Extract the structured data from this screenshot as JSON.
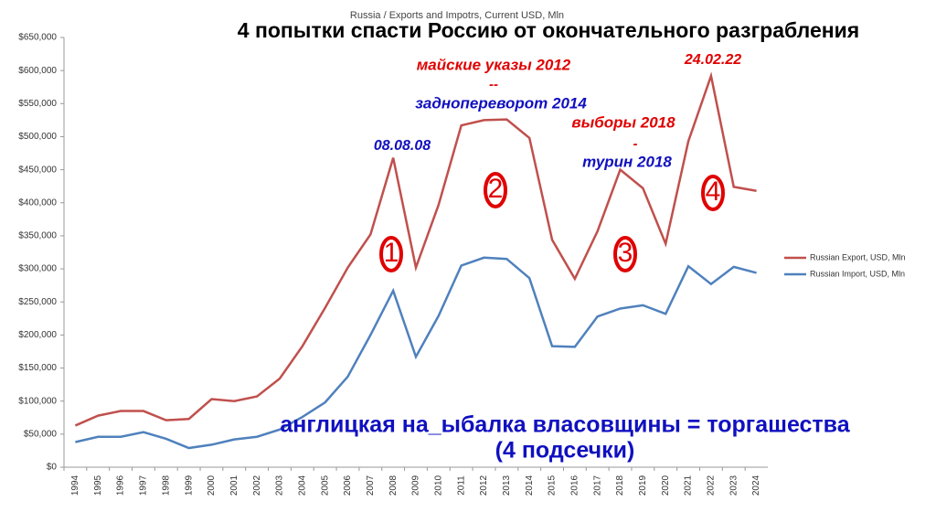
{
  "chart_data": {
    "type": "line",
    "title": "Russia / Exports and Impotrs, Current USD, Mln",
    "categories": [
      "1994",
      "1995",
      "1996",
      "1997",
      "1998",
      "1999",
      "2000",
      "2001",
      "2002",
      "2003",
      "2004",
      "2005",
      "2006",
      "2007",
      "2008",
      "2009",
      "2010",
      "2011",
      "2012",
      "2013",
      "2014",
      "2015",
      "2016",
      "2017",
      "2018",
      "2019",
      "2020",
      "2021",
      "2022",
      "2023",
      "2024"
    ],
    "series": [
      {
        "name": "Russian Export, USD, Mln",
        "color": "#c0504d",
        "values": [
          63000,
          78000,
          85000,
          85000,
          71000,
          73000,
          103000,
          100000,
          107000,
          134000,
          183000,
          241000,
          302000,
          352000,
          468000,
          302000,
          397000,
          517000,
          525000,
          526000,
          498000,
          344000,
          285000,
          357000,
          450000,
          422000,
          338000,
          493000,
          592000,
          424000,
          418000
        ]
      },
      {
        "name": "Russian Import, USD, Mln",
        "color": "#4f81bd",
        "values": [
          38000,
          46000,
          46000,
          53000,
          43000,
          29000,
          34000,
          42000,
          46000,
          57000,
          76000,
          98000,
          137000,
          200000,
          267000,
          167000,
          229000,
          305000,
          317000,
          315000,
          286000,
          183000,
          182000,
          228000,
          240000,
          245000,
          232000,
          304000,
          277000,
          303000,
          294000
        ]
      }
    ],
    "ylim": [
      0,
      650000
    ],
    "yticks": [
      {
        "value": 0,
        "label": "$0"
      },
      {
        "value": 50000,
        "label": "$50,000"
      },
      {
        "value": 100000,
        "label": "$100,000"
      },
      {
        "value": 150000,
        "label": "$150,000"
      },
      {
        "value": 200000,
        "label": "$200,000"
      },
      {
        "value": 250000,
        "label": "$250,000"
      },
      {
        "value": 300000,
        "label": "$300,000"
      },
      {
        "value": 350000,
        "label": "$350,000"
      },
      {
        "value": 400000,
        "label": "$400,000"
      },
      {
        "value": 450000,
        "label": "$450,000"
      },
      {
        "value": 500000,
        "label": "$500,000"
      },
      {
        "value": 550000,
        "label": "$550,000"
      },
      {
        "value": 600000,
        "label": "$600,000"
      },
      {
        "value": 650000,
        "label": "$650,000"
      }
    ],
    "grid": false,
    "legend": "right",
    "annotations": [
      {
        "text": "4 попытки спасти Россию от окончательного разграбления",
        "color": "#000000"
      },
      {
        "text": "майские указы 2012",
        "color": "#e00000"
      },
      {
        "text": "--",
        "color": "#e00000"
      },
      {
        "text": "задноперево­рот 2014",
        "color": "#1010c0"
      },
      {
        "text": "08.08.08",
        "color": "#1010c0"
      },
      {
        "text": "выборы 2018",
        "color": "#e00000"
      },
      {
        "text": "-",
        "color": "#e00000"
      },
      {
        "text": "турин 2018",
        "color": "#1010c0"
      },
      {
        "text": "24.02.22",
        "color": "#e00000"
      },
      {
        "text": "1",
        "color": "#e00000"
      },
      {
        "text": "2",
        "color": "#e00000"
      },
      {
        "text": "3",
        "color": "#e00000"
      },
      {
        "text": "4",
        "color": "#e00000"
      },
      {
        "text": "англицкая на_ыбалка власовщины = торгашества",
        "color": "#1010c0"
      },
      {
        "text": "(4 подсечки)",
        "color": "#1010c0"
      }
    ]
  }
}
